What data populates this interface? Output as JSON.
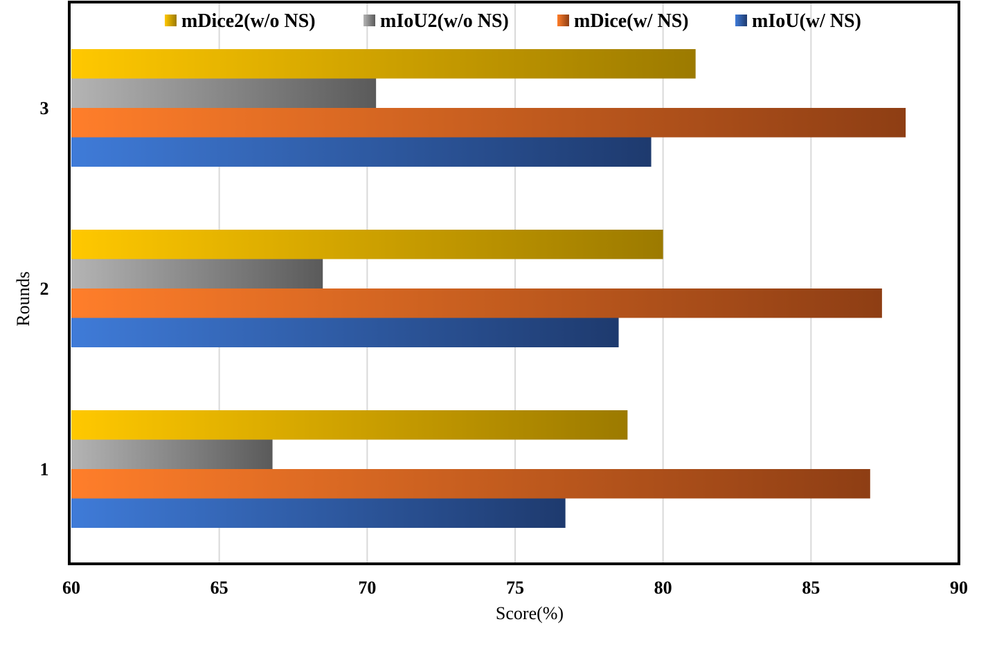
{
  "chart_data": {
    "type": "bar",
    "orientation": "horizontal",
    "xlabel": "Score(%)",
    "ylabel": "Rounds",
    "xlim": [
      60,
      90
    ],
    "xticks": [
      60,
      65,
      70,
      75,
      80,
      85,
      90
    ],
    "categories": [
      "1",
      "2",
      "3"
    ],
    "grid": "vertical",
    "legend_position": "top",
    "series": [
      {
        "name": "mDice2(w/o NS)",
        "values": [
          78.8,
          80.0,
          81.1
        ],
        "color_start": "#FFC800",
        "color_end": "#9C7A00"
      },
      {
        "name": "mIoU2(w/o NS)",
        "values": [
          66.8,
          68.5,
          70.3
        ],
        "color_start": "#B4B4B4",
        "color_end": "#5A5A5A"
      },
      {
        "name": "mDice(w/ NS)",
        "values": [
          87.0,
          87.4,
          88.2
        ],
        "color_start": "#FF7E2A",
        "color_end": "#8E3E14"
      },
      {
        "name": "mIoU(w/ NS)",
        "values": [
          76.7,
          78.5,
          79.6
        ],
        "color_start": "#3F7BD8",
        "color_end": "#1E3A6E"
      }
    ]
  }
}
